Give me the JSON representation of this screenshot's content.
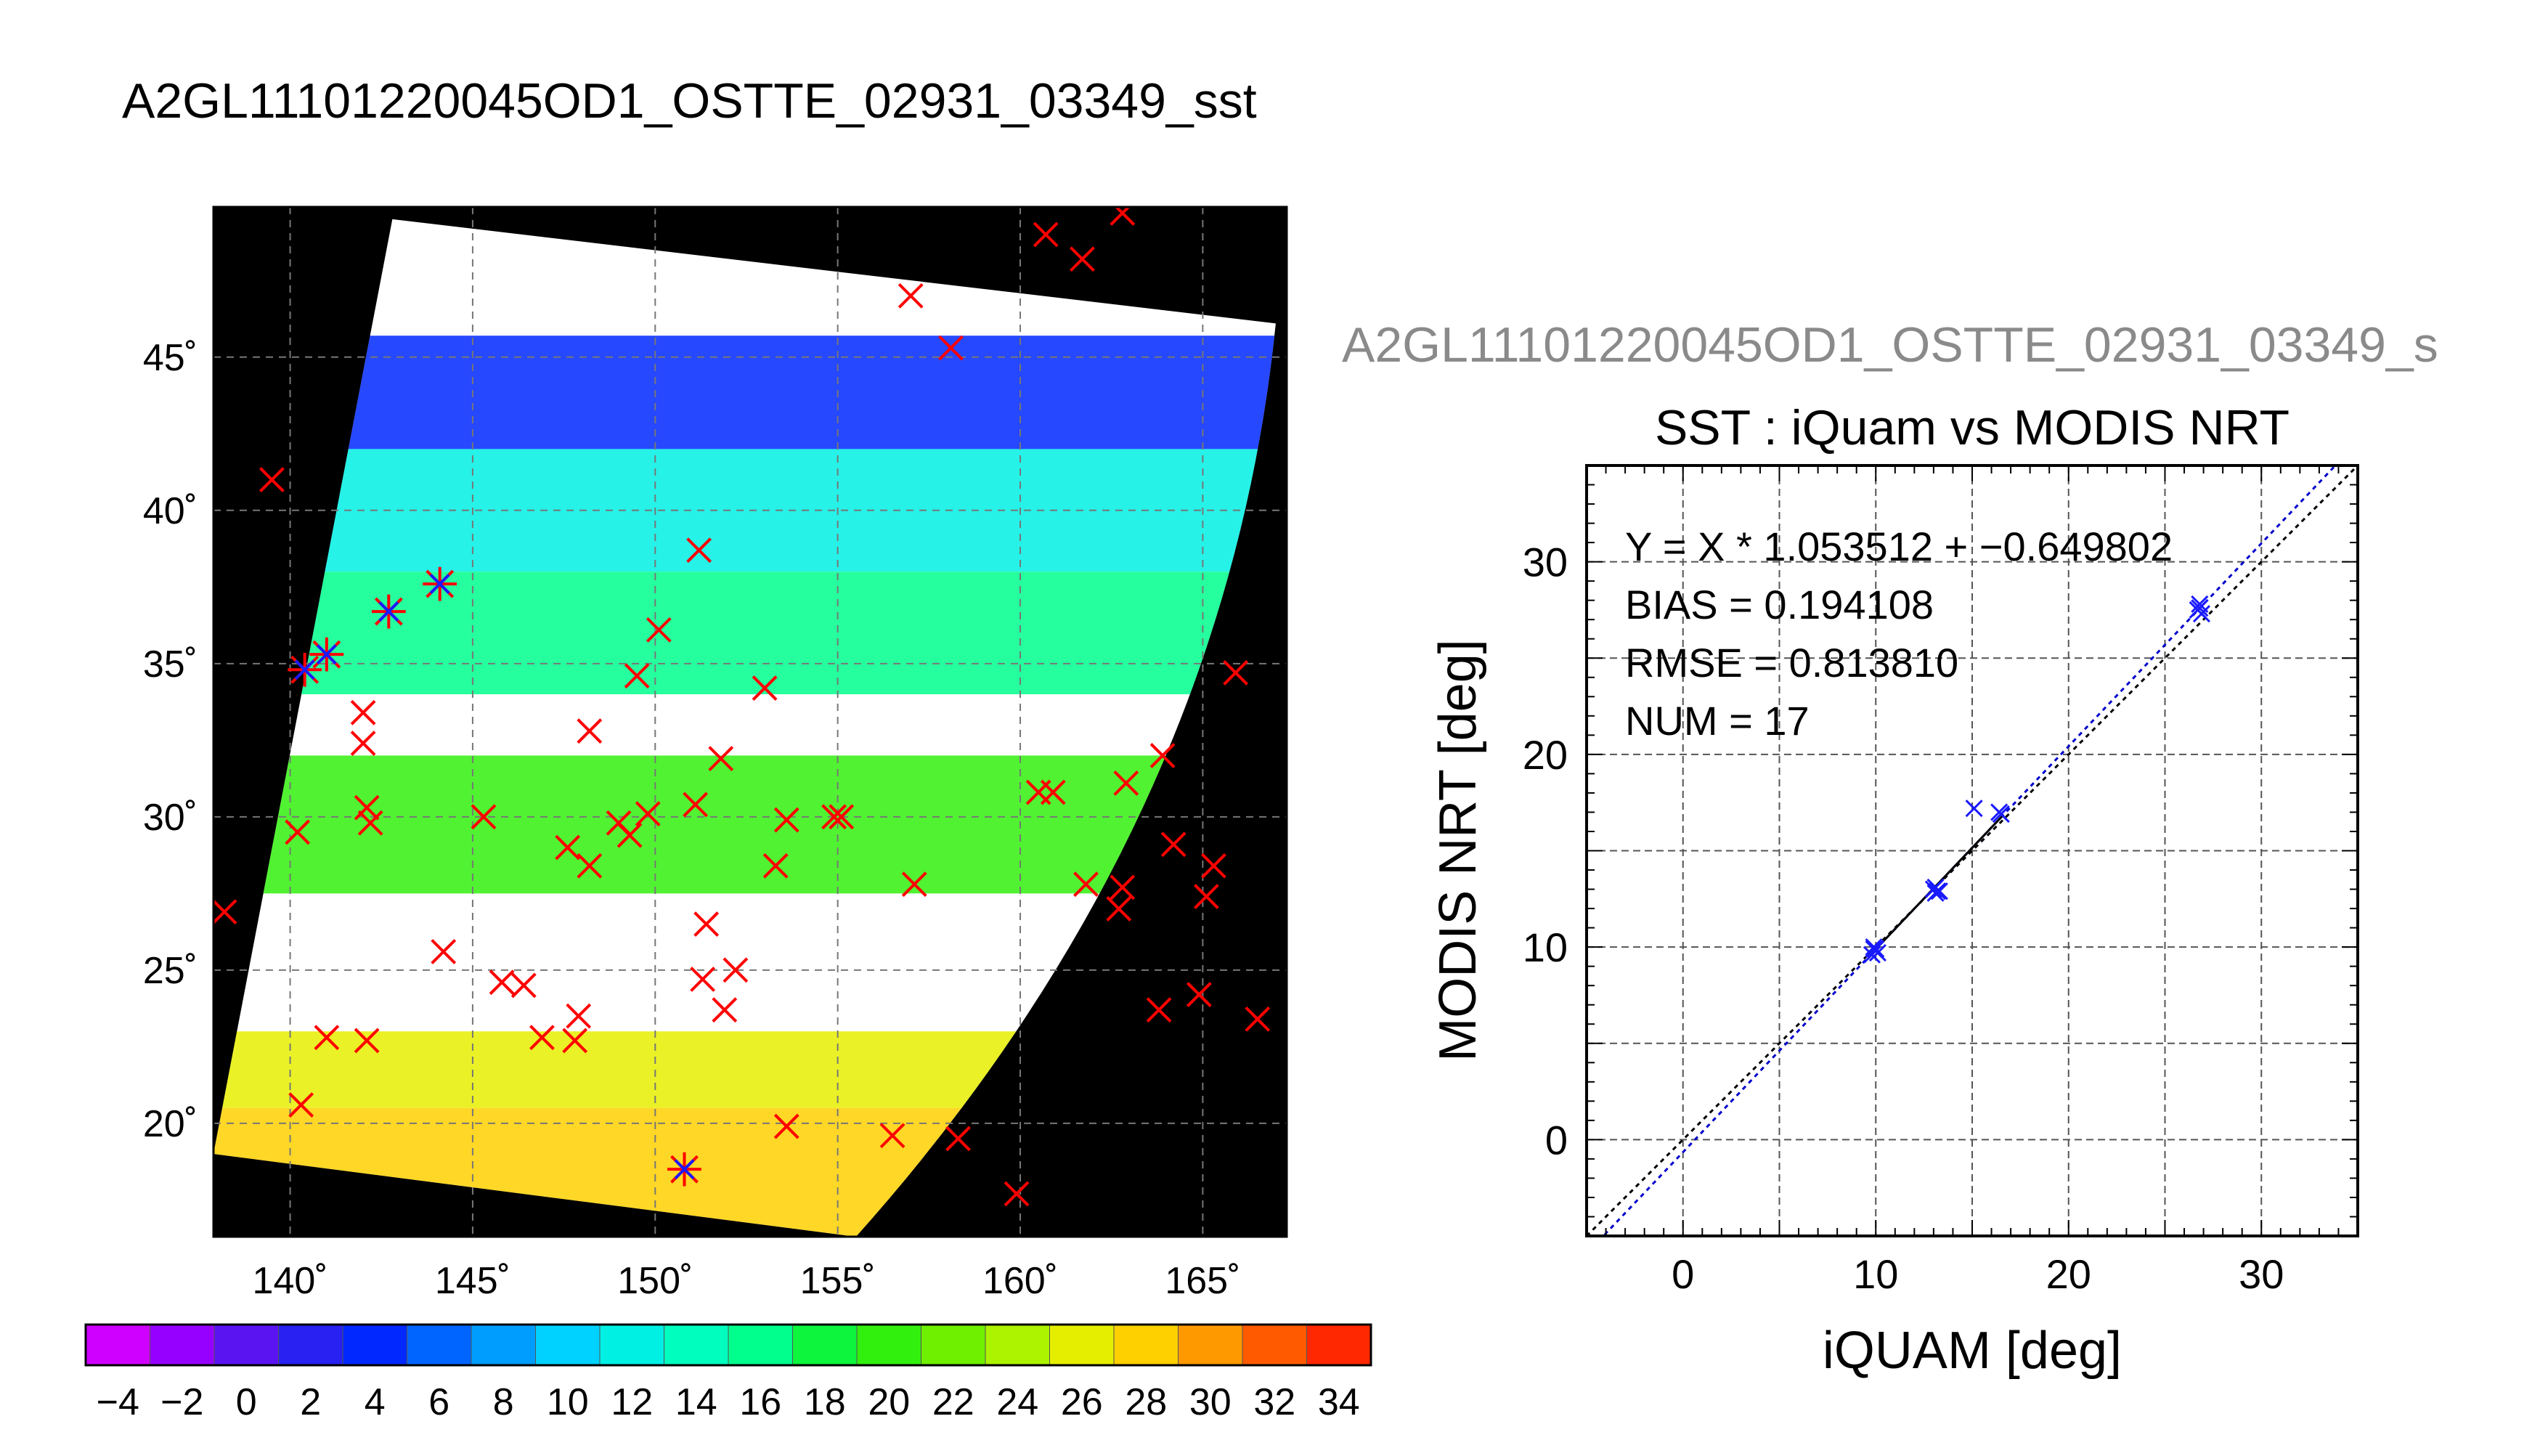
{
  "page": {
    "title": "A2GL11101220045OD1_OSTTE_02931_03349_sst",
    "scatter_title_clipped": "A2GL11101220045OD1_OSTTE_02931_03349_s"
  },
  "colors": {
    "map_background": "#000000",
    "grid": "#777777",
    "match_marker_red": "#ff0000",
    "match_marker_blue": "#1a1aff",
    "fit_line": "#0000cc",
    "identity_line": "#000000"
  },
  "chart_data": [
    {
      "id": "sst_map",
      "type": "scatter",
      "title": "",
      "xticks": [
        140,
        145,
        150,
        155,
        160,
        165
      ],
      "xtick_labels": [
        "140˚",
        "145˚",
        "150˚",
        "155˚",
        "160˚",
        "165˚"
      ],
      "yticks": [
        20,
        25,
        30,
        35,
        40,
        45
      ],
      "ytick_labels": [
        "20˚",
        "25˚",
        "30˚",
        "35˚",
        "40˚",
        "45˚"
      ],
      "xlim": [
        137.9,
        167.3
      ],
      "ylim": [
        16.3,
        49.9
      ],
      "grid": true,
      "swath_corners": {
        "upper_left_lon": 142.8,
        "upper_left_lat": 49.5,
        "upper_right_lon": 167.0,
        "upper_right_lat": 46.1,
        "lower_right_lon": 155.5,
        "lower_right_lat": 16.3,
        "lower_left_lon": 137.9,
        "lower_left_lat": 19.0
      },
      "sst_bands": [
        {
          "lat_top": 45.7,
          "lat_bottom": 42.0,
          "value": 4
        },
        {
          "lat_top": 42.0,
          "lat_bottom": 38.0,
          "value": 12
        },
        {
          "lat_top": 38.0,
          "lat_bottom": 34.0,
          "value": 16
        },
        {
          "lat_top": 32.0,
          "lat_bottom": 27.5,
          "value": 20
        },
        {
          "lat_top": 23.0,
          "lat_bottom": 20.5,
          "value": 26
        },
        {
          "lat_top": 20.5,
          "lat_bottom": 16.3,
          "value": 28
        }
      ],
      "match_points_red": [
        [
          160.7,
          49.0
        ],
        [
          161.7,
          48.2
        ],
        [
          162.8,
          49.7
        ],
        [
          157.0,
          47.0
        ],
        [
          158.1,
          45.3
        ],
        [
          139.5,
          41.0
        ],
        [
          151.2,
          38.7
        ],
        [
          150.1,
          36.1
        ],
        [
          149.5,
          34.6
        ],
        [
          153.0,
          34.2
        ],
        [
          142.0,
          33.4
        ],
        [
          148.2,
          32.8
        ],
        [
          142.0,
          32.4
        ],
        [
          151.8,
          31.9
        ],
        [
          142.1,
          30.3
        ],
        [
          140.2,
          29.5
        ],
        [
          142.2,
          29.8
        ],
        [
          145.3,
          30.0
        ],
        [
          149.0,
          29.8
        ],
        [
          149.3,
          29.4
        ],
        [
          149.8,
          30.1
        ],
        [
          151.1,
          30.4
        ],
        [
          153.6,
          29.9
        ],
        [
          154.9,
          30.0
        ],
        [
          155.1,
          30.0
        ],
        [
          147.6,
          29.0
        ],
        [
          148.2,
          28.4
        ],
        [
          153.3,
          28.4
        ],
        [
          157.1,
          27.8
        ],
        [
          151.4,
          26.5
        ],
        [
          144.2,
          25.6
        ],
        [
          151.3,
          24.7
        ],
        [
          152.2,
          25.0
        ],
        [
          151.9,
          23.7
        ],
        [
          145.8,
          24.6
        ],
        [
          146.4,
          24.5
        ],
        [
          147.9,
          23.5
        ],
        [
          146.9,
          22.8
        ],
        [
          147.8,
          22.7
        ],
        [
          141.0,
          22.8
        ],
        [
          142.1,
          22.7
        ],
        [
          140.3,
          20.6
        ],
        [
          153.6,
          19.9
        ],
        [
          156.5,
          19.6
        ],
        [
          158.3,
          19.5
        ],
        [
          159.9,
          17.7
        ],
        [
          138.2,
          26.9
        ],
        [
          160.5,
          30.8
        ],
        [
          160.9,
          30.8
        ],
        [
          161.8,
          27.8
        ],
        [
          162.9,
          31.1
        ],
        [
          162.8,
          27.7
        ],
        [
          162.7,
          27.0
        ],
        [
          163.9,
          32.0
        ],
        [
          164.2,
          29.1
        ],
        [
          163.8,
          23.7
        ],
        [
          164.9,
          24.2
        ],
        [
          165.3,
          28.4
        ],
        [
          165.1,
          27.4
        ],
        [
          165.9,
          34.7
        ],
        [
          166.5,
          23.4
        ]
      ],
      "match_points_blue": [
        [
          144.1,
          37.6
        ],
        [
          142.7,
          36.7
        ],
        [
          141.0,
          35.3
        ],
        [
          140.4,
          34.8
        ],
        [
          150.8,
          18.5
        ]
      ]
    },
    {
      "id": "sst_colorbar",
      "type": "heatmap",
      "title": "",
      "colorbar_min": -5,
      "colorbar_max": 35,
      "colorbar_step": 2,
      "ticks": [
        -4,
        -2,
        0,
        2,
        4,
        6,
        8,
        10,
        12,
        14,
        16,
        18,
        20,
        22,
        24,
        26,
        28,
        30,
        32,
        34
      ],
      "tick_labels": [
        "−4",
        "−2",
        "0",
        "2",
        "4",
        "6",
        "8",
        "10",
        "12",
        "14",
        "16",
        "18",
        "20",
        "22",
        "24",
        "26",
        "28",
        "30",
        "32",
        "34"
      ]
    },
    {
      "id": "sst_scatter",
      "type": "scatter",
      "title": "SST : iQuam vs MODIS NRT",
      "xlabel": "iQUAM [deg]",
      "ylabel": "MODIS NRT [deg]",
      "xlim": [
        -5,
        35
      ],
      "ylim": [
        -5,
        35
      ],
      "xticks": [
        0,
        10,
        20,
        30
      ],
      "yticks": [
        0,
        10,
        20,
        30
      ],
      "grid": true,
      "stats": [
        "Y = X * 1.053512 + −0.649802",
        "BIAS = 0.194108",
        "RMSE = 0.813810",
        "NUM = 17"
      ],
      "fit": {
        "slope": 1.053512,
        "intercept": -0.649802
      },
      "points": [
        [
          9.9,
          9.9
        ],
        [
          9.8,
          9.6
        ],
        [
          10.0,
          9.9
        ],
        [
          9.9,
          10.0
        ],
        [
          10.1,
          9.7
        ],
        [
          13.1,
          13.1
        ],
        [
          13.3,
          12.9
        ],
        [
          13.2,
          12.9
        ],
        [
          13.0,
          13.0
        ],
        [
          13.1,
          12.8
        ],
        [
          15.1,
          17.2
        ],
        [
          16.5,
          16.9
        ],
        [
          16.4,
          17.0
        ],
        [
          26.8,
          27.8
        ],
        [
          26.9,
          27.3
        ],
        [
          26.7,
          27.5
        ],
        [
          26.8,
          27.6
        ]
      ]
    }
  ]
}
